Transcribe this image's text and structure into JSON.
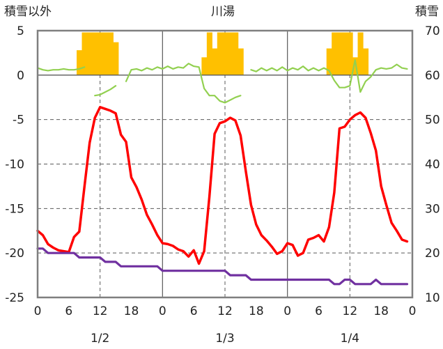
{
  "chart_data": {
    "type": "line",
    "title": "川湯",
    "left_axis_label": "積雪以外",
    "right_axis_label": "積雪",
    "left_ylim": [
      -25,
      5
    ],
    "left_yticks": [
      5,
      0,
      -5,
      -10,
      -15,
      -20,
      -25
    ],
    "right_ylim": [
      10,
      70
    ],
    "right_yticks": [
      70,
      60,
      50,
      40,
      30,
      20,
      10
    ],
    "x_tick_labels": [
      "0",
      "6",
      "12",
      "18",
      "0",
      "6",
      "12",
      "18",
      "0",
      "6",
      "12",
      "18",
      "0"
    ],
    "x_tick_hours": [
      0,
      6,
      12,
      18,
      24,
      30,
      36,
      42,
      48,
      54,
      60,
      66,
      72
    ],
    "date_labels": [
      {
        "label": "1/2",
        "hour": 12
      },
      {
        "label": "1/3",
        "hour": 36
      },
      {
        "label": "1/4",
        "hour": 60
      }
    ],
    "grid": true,
    "colors": {
      "temperature": "#ff0000",
      "bars": "#ffc000",
      "wind": "#92d050",
      "snow_depth": "#7030a0",
      "frame": "#7f7f7f"
    },
    "bars": {
      "axis": "left",
      "base": 0,
      "hours": [
        8,
        9,
        10,
        11,
        12,
        13,
        14,
        15,
        16,
        32,
        33,
        34,
        35,
        36,
        37,
        38,
        39,
        40,
        56,
        57,
        58,
        59,
        60,
        61,
        62,
        63,
        64
      ],
      "values": [
        2.8,
        4.8,
        4.8,
        4.8,
        4.8,
        4.8,
        4.8,
        3.7,
        0,
        2.0,
        4.8,
        3.0,
        4.8,
        4.8,
        4.8,
        4.8,
        3.0,
        0,
        3.0,
        4.8,
        4.8,
        4.8,
        4.8,
        2.0,
        4.8,
        3.0,
        0
      ]
    },
    "series": [
      {
        "key": "temperature",
        "axis": "left",
        "hours": [
          0,
          1,
          2,
          3,
          4,
          5,
          6,
          7,
          8,
          9,
          10,
          11,
          12,
          13,
          14,
          15,
          16,
          17,
          18,
          19,
          20,
          21,
          22,
          23,
          24,
          25,
          26,
          27,
          28,
          29,
          30,
          31,
          32,
          33,
          34,
          35,
          36,
          37,
          38,
          39,
          40,
          41,
          42,
          43,
          44,
          45,
          46,
          47,
          48,
          49,
          50,
          51,
          52,
          53,
          54,
          55,
          56,
          57,
          58,
          59,
          60,
          61,
          62,
          63,
          64,
          65,
          66,
          67,
          68,
          69,
          70,
          71,
          72
        ],
        "values": [
          -17.5,
          -18,
          -19,
          -19.4,
          -19.7,
          -19.8,
          -19.9,
          -18.2,
          -17.6,
          -12.5,
          -7.6,
          -4.8,
          -3.6,
          -3.8,
          -4.0,
          -4.3,
          -6.7,
          -7.5,
          -11.5,
          -12.6,
          -14.0,
          -15.7,
          -16.8,
          -18.0,
          -18.9,
          -19.0,
          -19.2,
          -19.6,
          -19.8,
          -20.4,
          -19.7,
          -21.2,
          -19.8,
          -13.7,
          -6.6,
          -5.4,
          -5.2,
          -4.8,
          -5.1,
          -6.8,
          -10.8,
          -14.6,
          -16.8,
          -18.0,
          -18.6,
          -19.3,
          -20.1,
          -19.8,
          -18.9,
          -19.1,
          -20.3,
          -20.0,
          -18.5,
          -18.3,
          -18.0,
          -18.7,
          -17.1,
          -13.2,
          -6.0,
          -5.8,
          -5.0,
          -4.5,
          -4.2,
          -4.8,
          -6.5,
          -8.5,
          -12.5,
          -14.6,
          -16.6,
          -17.5,
          -18.5,
          -18.7,
          null
        ]
      },
      {
        "key": "wind",
        "axis": "left",
        "hours": [
          0,
          1,
          2,
          3,
          4,
          5,
          6,
          7,
          8,
          9,
          null,
          11,
          12,
          13,
          14,
          15,
          null,
          17,
          18,
          19,
          20,
          21,
          22,
          23,
          24,
          25,
          26,
          27,
          28,
          29,
          30,
          31,
          32,
          33,
          34,
          35,
          36,
          37,
          38,
          39,
          null,
          41,
          42,
          43,
          44,
          45,
          46,
          47,
          48,
          49,
          50,
          51,
          52,
          53,
          54,
          55,
          56,
          57,
          58,
          59,
          60,
          61,
          62,
          63,
          64,
          65,
          66,
          67,
          68,
          69,
          70,
          71
        ],
        "values": [
          0.8,
          0.6,
          0.5,
          0.6,
          0.6,
          0.7,
          0.6,
          0.6,
          0.7,
          0.9,
          null,
          -2.3,
          -2.2,
          -1.9,
          -1.6,
          -1.2,
          null,
          -0.7,
          0.6,
          0.7,
          0.5,
          0.8,
          0.6,
          0.9,
          0.7,
          1.0,
          0.7,
          0.9,
          0.8,
          1.3,
          1.0,
          0.9,
          -1.5,
          -2.3,
          -2.3,
          -2.9,
          -3.1,
          -2.8,
          -2.5,
          -2.3,
          null,
          0.6,
          0.4,
          0.8,
          0.5,
          0.8,
          0.5,
          0.9,
          0.5,
          0.8,
          0.6,
          1.0,
          0.5,
          0.8,
          0.5,
          0.8,
          0.5,
          -0.6,
          -1.4,
          -1.4,
          -1.2,
          1.7,
          -1.9,
          -0.7,
          -0.2,
          0.6,
          0.8,
          0.7,
          0.8,
          1.2,
          0.8,
          0.7
        ]
      },
      {
        "key": "snow_depth",
        "axis": "right",
        "hours": [
          0,
          1,
          2,
          3,
          4,
          5,
          6,
          7,
          8,
          9,
          10,
          11,
          12,
          13,
          14,
          15,
          16,
          17,
          18,
          19,
          20,
          21,
          22,
          23,
          24,
          25,
          26,
          27,
          28,
          29,
          30,
          31,
          32,
          33,
          34,
          35,
          36,
          37,
          38,
          39,
          40,
          41,
          42,
          43,
          44,
          45,
          46,
          47,
          48,
          49,
          50,
          51,
          52,
          53,
          54,
          55,
          56,
          57,
          58,
          59,
          60,
          61,
          62,
          63,
          64,
          65,
          66,
          67,
          68,
          69,
          70,
          71,
          72
        ],
        "values": [
          21,
          21,
          20,
          20,
          20,
          20,
          20,
          20,
          19,
          19,
          19,
          19,
          19,
          18,
          18,
          18,
          17,
          17,
          17,
          17,
          17,
          17,
          17,
          17,
          16,
          16,
          16,
          16,
          16,
          16,
          16,
          16,
          16,
          16,
          16,
          16,
          16,
          15,
          15,
          15,
          15,
          14,
          14,
          14,
          14,
          14,
          14,
          14,
          14,
          14,
          14,
          14,
          14,
          14,
          14,
          14,
          14,
          13,
          13,
          14,
          14,
          13,
          13,
          13,
          13,
          14,
          13,
          13,
          13,
          13,
          13,
          13,
          null
        ]
      }
    ]
  }
}
